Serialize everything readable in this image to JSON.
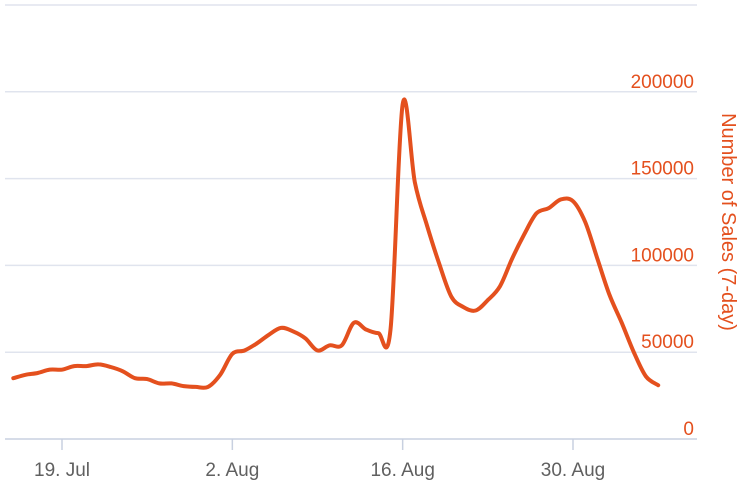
{
  "chart_data": {
    "type": "line",
    "title": "",
    "xlabel": "",
    "ylabel": "Number of Sales (7-day)",
    "ylim": [
      0,
      250000
    ],
    "y_ticks": [
      0,
      50000,
      100000,
      150000,
      200000
    ],
    "y_tick_labels": [
      "0",
      "50000",
      "100000",
      "150000",
      "200000"
    ],
    "x_range": [
      "2021-07-15",
      "2021-09-04"
    ],
    "x_ticks": [
      {
        "date": "2021-07-19",
        "label": "19. Jul"
      },
      {
        "date": "2021-08-02",
        "label": "2. Aug"
      },
      {
        "date": "2021-08-16",
        "label": "16. Aug"
      },
      {
        "date": "2021-08-30",
        "label": "30. Aug"
      }
    ],
    "grid": true,
    "y_axis_position": "right",
    "accent_color": "#e4501e",
    "series": [
      {
        "color": "#e4501e",
        "points": [
          [
            "2021-07-15",
            35000
          ],
          [
            "2021-07-16",
            37000
          ],
          [
            "2021-07-17",
            38000
          ],
          [
            "2021-07-18",
            40000
          ],
          [
            "2021-07-19",
            40000
          ],
          [
            "2021-07-20",
            42000
          ],
          [
            "2021-07-21",
            42000
          ],
          [
            "2021-07-22",
            43000
          ],
          [
            "2021-07-23",
            41500
          ],
          [
            "2021-07-24",
            39000
          ],
          [
            "2021-07-25",
            35000
          ],
          [
            "2021-07-26",
            34500
          ],
          [
            "2021-07-27",
            32000
          ],
          [
            "2021-07-28",
            32000
          ],
          [
            "2021-07-29",
            30500
          ],
          [
            "2021-07-30",
            30000
          ],
          [
            "2021-07-31",
            30000
          ],
          [
            "2021-08-01",
            37000
          ],
          [
            "2021-08-02",
            49000
          ],
          [
            "2021-08-03",
            51000
          ],
          [
            "2021-08-04",
            55000
          ],
          [
            "2021-08-05",
            60000
          ],
          [
            "2021-08-06",
            64000
          ],
          [
            "2021-08-07",
            62000
          ],
          [
            "2021-08-08",
            58000
          ],
          [
            "2021-08-09",
            51000
          ],
          [
            "2021-08-10",
            54000
          ],
          [
            "2021-08-11",
            54000
          ],
          [
            "2021-08-12",
            67000
          ],
          [
            "2021-08-13",
            63000
          ],
          [
            "2021-08-14",
            61000
          ],
          [
            "2021-08-15",
            63000
          ],
          [
            "2021-08-16",
            193000
          ],
          [
            "2021-08-17",
            148000
          ],
          [
            "2021-08-18",
            123000
          ],
          [
            "2021-08-19",
            101000
          ],
          [
            "2021-08-20",
            82000
          ],
          [
            "2021-08-21",
            76000
          ],
          [
            "2021-08-22",
            74000
          ],
          [
            "2021-08-23",
            80000
          ],
          [
            "2021-08-24",
            88000
          ],
          [
            "2021-08-25",
            104000
          ],
          [
            "2021-08-26",
            118000
          ],
          [
            "2021-08-27",
            130000
          ],
          [
            "2021-08-28",
            133000
          ],
          [
            "2021-08-29",
            138000
          ],
          [
            "2021-08-30",
            137000
          ],
          [
            "2021-08-31",
            125000
          ],
          [
            "2021-09-01",
            104000
          ],
          [
            "2021-09-02",
            83000
          ],
          [
            "2021-09-03",
            67000
          ],
          [
            "2021-09-04",
            50000
          ],
          [
            "2021-09-05",
            36000
          ],
          [
            "2021-09-06",
            31000
          ]
        ]
      }
    ]
  }
}
